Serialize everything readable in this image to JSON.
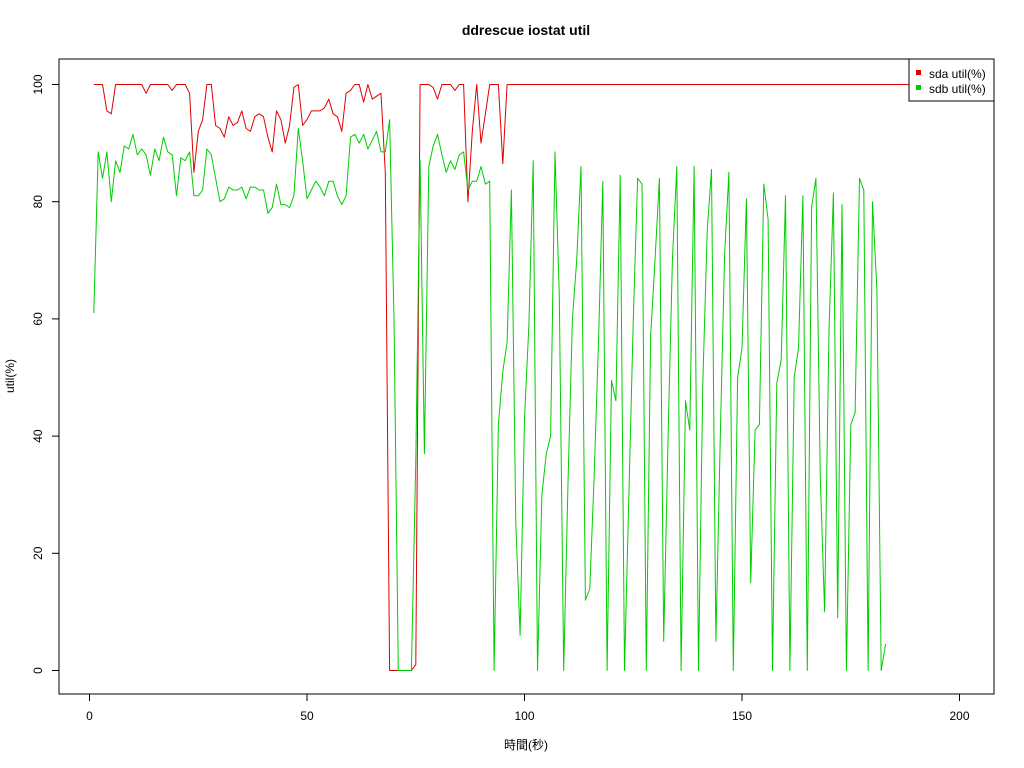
{
  "chart_data": {
    "type": "line",
    "title": "ddrescue iostat util",
    "xlabel": "時間(秒)",
    "ylabel": "util(%)",
    "xlim": [
      1,
      200
    ],
    "ylim": [
      0,
      100
    ],
    "xticks": [
      0,
      50,
      100,
      150,
      200
    ],
    "yticks": [
      0,
      20,
      40,
      60,
      80,
      100
    ],
    "legend_position": "top-right",
    "series": [
      {
        "name": "sda util(%)",
        "color": "#DF0000",
        "points": [
          [
            1,
            100
          ],
          [
            3,
            100
          ],
          [
            4,
            95.5
          ],
          [
            5,
            95
          ],
          [
            6,
            100
          ],
          [
            12,
            100
          ],
          [
            13,
            98.5
          ],
          [
            14,
            100
          ],
          [
            18,
            100
          ],
          [
            19,
            99
          ],
          [
            20,
            100
          ],
          [
            22,
            100
          ],
          [
            23,
            98.5
          ],
          [
            24,
            85
          ],
          [
            25,
            92
          ],
          [
            26,
            94
          ],
          [
            27,
            100
          ],
          [
            28,
            100
          ],
          [
            29,
            93
          ],
          [
            30,
            92.5
          ],
          [
            31,
            91
          ],
          [
            32,
            94.5
          ],
          [
            33,
            93
          ],
          [
            34,
            93.5
          ],
          [
            35,
            95.5
          ],
          [
            36,
            92.5
          ],
          [
            37,
            92
          ],
          [
            38,
            94.5
          ],
          [
            39,
            95
          ],
          [
            40,
            94.5
          ],
          [
            41,
            91
          ],
          [
            42,
            88.5
          ],
          [
            43,
            95.5
          ],
          [
            44,
            94
          ],
          [
            45,
            90
          ],
          [
            46,
            93
          ],
          [
            47,
            99.5
          ],
          [
            48,
            100
          ],
          [
            49,
            93
          ],
          [
            50,
            94
          ],
          [
            51,
            95.5
          ],
          [
            52,
            95.5
          ],
          [
            53,
            95.5
          ],
          [
            54,
            96
          ],
          [
            55,
            97.5
          ],
          [
            56,
            95
          ],
          [
            57,
            94.5
          ],
          [
            58,
            92
          ],
          [
            59,
            98.5
          ],
          [
            60,
            99
          ],
          [
            61,
            100
          ],
          [
            62,
            100
          ],
          [
            63,
            97
          ],
          [
            64,
            100
          ],
          [
            65,
            97.5
          ],
          [
            66,
            98
          ],
          [
            67,
            98.5
          ],
          [
            68,
            85
          ],
          [
            69,
            0
          ],
          [
            70,
            0
          ],
          [
            74,
            0
          ],
          [
            75,
            1
          ],
          [
            76,
            100
          ],
          [
            78,
            100
          ],
          [
            79,
            99.5
          ],
          [
            80,
            97.5
          ],
          [
            81,
            100
          ],
          [
            83,
            100
          ],
          [
            84,
            99
          ],
          [
            85,
            100
          ],
          [
            86,
            100
          ],
          [
            87,
            80
          ],
          [
            88,
            92
          ],
          [
            89,
            100
          ],
          [
            90,
            90
          ],
          [
            91,
            95
          ],
          [
            92,
            100
          ],
          [
            93,
            100
          ],
          [
            94,
            100
          ],
          [
            95,
            86.5
          ],
          [
            96,
            100
          ],
          [
            200,
            100
          ]
        ]
      },
      {
        "name": "sdb util(%)",
        "color": "#00CD00",
        "points": [
          [
            1,
            61
          ],
          [
            2,
            88.5
          ],
          [
            3,
            84
          ],
          [
            4,
            88.5
          ],
          [
            5,
            80
          ],
          [
            6,
            87
          ],
          [
            7,
            85
          ],
          [
            8,
            89.5
          ],
          [
            9,
            89
          ],
          [
            10,
            91.5
          ],
          [
            11,
            88
          ],
          [
            12,
            89
          ],
          [
            13,
            88
          ],
          [
            14,
            84.5
          ],
          [
            15,
            89
          ],
          [
            16,
            87
          ],
          [
            17,
            91
          ],
          [
            18,
            88.5
          ],
          [
            19,
            88
          ],
          [
            20,
            81
          ],
          [
            21,
            87.5
          ],
          [
            22,
            87
          ],
          [
            23,
            88.5
          ],
          [
            24,
            81
          ],
          [
            25,
            81
          ],
          [
            26,
            82
          ],
          [
            27,
            89
          ],
          [
            28,
            88
          ],
          [
            29,
            84
          ],
          [
            30,
            80
          ],
          [
            31,
            80.5
          ],
          [
            32,
            82.5
          ],
          [
            33,
            82
          ],
          [
            34,
            82
          ],
          [
            35,
            82.5
          ],
          [
            36,
            80.5
          ],
          [
            37,
            82.5
          ],
          [
            38,
            82.5
          ],
          [
            39,
            82
          ],
          [
            40,
            82
          ],
          [
            41,
            78
          ],
          [
            42,
            79
          ],
          [
            43,
            83
          ],
          [
            44,
            79.5
          ],
          [
            45,
            79.5
          ],
          [
            46,
            79
          ],
          [
            47,
            81
          ],
          [
            48,
            92.5
          ],
          [
            49,
            87
          ],
          [
            50,
            80.5
          ],
          [
            51,
            82
          ],
          [
            52,
            83.5
          ],
          [
            53,
            82.5
          ],
          [
            54,
            81
          ],
          [
            55,
            83.5
          ],
          [
            56,
            83.5
          ],
          [
            57,
            81
          ],
          [
            58,
            79.5
          ],
          [
            59,
            81
          ],
          [
            60,
            91
          ],
          [
            61,
            91.5
          ],
          [
            62,
            90
          ],
          [
            63,
            91.5
          ],
          [
            64,
            89
          ],
          [
            65,
            90.5
          ],
          [
            66,
            92
          ],
          [
            67,
            88.5
          ],
          [
            68,
            88.5
          ],
          [
            69,
            94
          ],
          [
            70,
            60
          ],
          [
            71,
            0
          ],
          [
            74,
            0
          ],
          [
            75,
            36
          ],
          [
            76,
            87
          ],
          [
            77,
            37
          ],
          [
            78,
            86
          ],
          [
            79,
            89.5
          ],
          [
            80,
            91.5
          ],
          [
            81,
            88
          ],
          [
            82,
            85
          ],
          [
            83,
            87
          ],
          [
            84,
            85.5
          ],
          [
            85,
            88
          ],
          [
            86,
            88.5
          ],
          [
            87,
            82
          ],
          [
            88,
            83.5
          ],
          [
            89,
            83.5
          ],
          [
            90,
            86
          ],
          [
            91,
            83
          ],
          [
            92,
            83.5
          ],
          [
            93,
            0
          ],
          [
            94,
            42
          ],
          [
            95,
            51
          ],
          [
            96,
            56
          ],
          [
            97,
            82
          ],
          [
            98,
            25
          ],
          [
            99,
            6
          ],
          [
            100,
            43
          ],
          [
            101,
            59
          ],
          [
            102,
            87
          ],
          [
            103,
            0
          ],
          [
            104,
            30
          ],
          [
            105,
            37
          ],
          [
            106,
            40
          ],
          [
            107,
            88.5
          ],
          [
            108,
            64
          ],
          [
            109,
            0
          ],
          [
            110,
            32
          ],
          [
            111,
            60
          ],
          [
            112,
            70
          ],
          [
            113,
            86
          ],
          [
            114,
            12
          ],
          [
            115,
            14
          ],
          [
            116,
            33
          ],
          [
            117,
            56
          ],
          [
            118,
            83.5
          ],
          [
            119,
            0
          ],
          [
            120,
            49.5
          ],
          [
            121,
            46
          ],
          [
            122,
            84.5
          ],
          [
            123,
            0
          ],
          [
            124,
            30
          ],
          [
            125,
            60
          ],
          [
            126,
            84
          ],
          [
            127,
            83
          ],
          [
            128,
            0
          ],
          [
            129,
            57
          ],
          [
            130,
            70
          ],
          [
            131,
            84
          ],
          [
            132,
            5
          ],
          [
            133,
            40
          ],
          [
            134,
            70
          ],
          [
            135,
            86
          ],
          [
            136,
            0
          ],
          [
            137,
            46
          ],
          [
            138,
            41
          ],
          [
            139,
            86
          ],
          [
            140,
            0
          ],
          [
            141,
            49
          ],
          [
            142,
            75
          ],
          [
            143,
            85.5
          ],
          [
            144,
            5
          ],
          [
            145,
            40
          ],
          [
            146,
            71
          ],
          [
            147,
            85
          ],
          [
            148,
            0
          ],
          [
            149,
            50
          ],
          [
            150,
            55
          ],
          [
            151,
            80.5
          ],
          [
            152,
            15
          ],
          [
            153,
            41
          ],
          [
            154,
            42
          ],
          [
            155,
            83
          ],
          [
            156,
            77
          ],
          [
            157,
            0
          ],
          [
            158,
            49
          ],
          [
            159,
            53
          ],
          [
            160,
            81
          ],
          [
            161,
            0
          ],
          [
            162,
            50
          ],
          [
            163,
            55
          ],
          [
            164,
            81
          ],
          [
            165,
            0
          ],
          [
            166,
            79
          ],
          [
            167,
            84
          ],
          [
            168,
            33
          ],
          [
            169,
            10
          ],
          [
            170,
            58
          ],
          [
            171,
            81.5
          ],
          [
            172,
            9
          ],
          [
            173,
            79.5
          ],
          [
            174,
            0
          ],
          [
            175,
            42
          ],
          [
            176,
            44
          ],
          [
            177,
            84
          ],
          [
            178,
            82
          ],
          [
            179,
            0
          ],
          [
            180,
            80
          ],
          [
            181,
            65
          ],
          [
            182,
            0
          ],
          [
            183,
            4.5
          ]
        ]
      }
    ]
  }
}
